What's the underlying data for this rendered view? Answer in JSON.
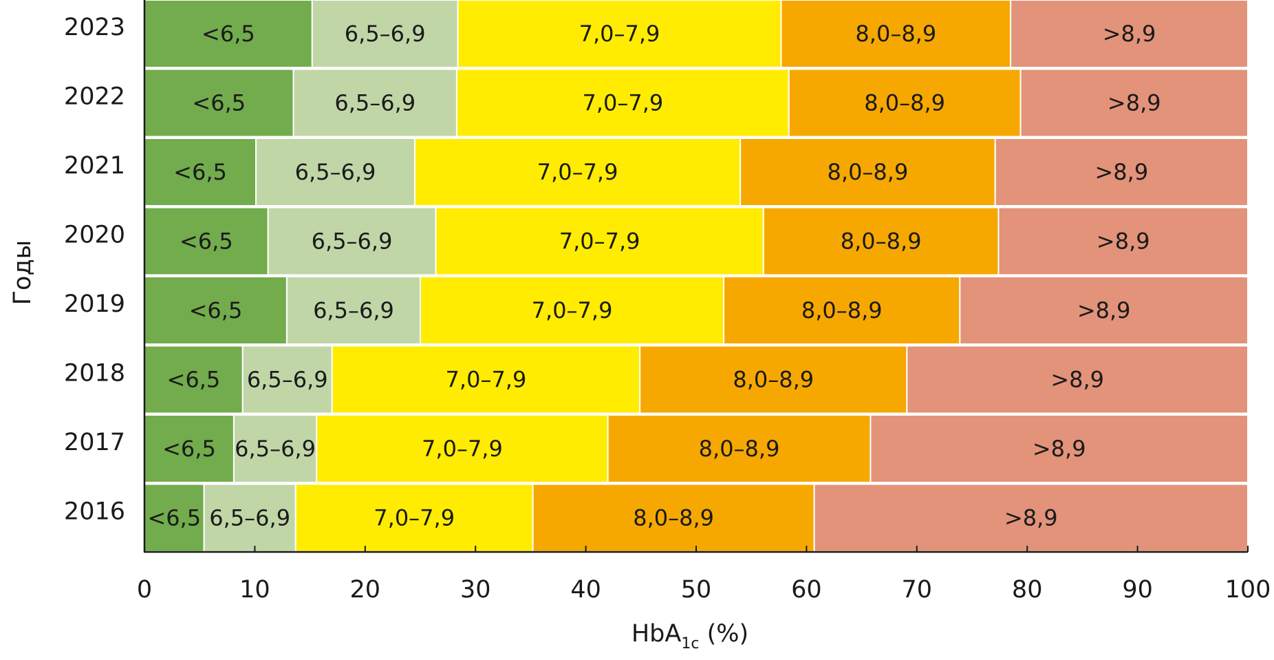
{
  "chart_data": {
    "type": "bar",
    "orientation": "horizontal",
    "stacked": true,
    "title": "",
    "xlabel": {
      "main": "HbA",
      "subscript": "1c",
      "suffix": " (%)"
    },
    "ylabel": "Годы",
    "xlim": [
      0,
      100
    ],
    "xticks": [
      "0",
      "10",
      "20",
      "30",
      "40",
      "50",
      "60",
      "70",
      "80",
      "90",
      "100"
    ],
    "categories": [
      "2023",
      "2022",
      "2021",
      "2020",
      "2019",
      "2018",
      "2017",
      "2016"
    ],
    "series": [
      {
        "name": "<6,5",
        "color": "#72ac4d",
        "values": [
          15.2,
          13.5,
          10.1,
          11.2,
          12.9,
          8.9,
          8.1,
          5.4
        ]
      },
      {
        "name": "6,5–6,9",
        "color": "#c0d6a7",
        "values": [
          13.2,
          14.8,
          14.4,
          15.2,
          12.1,
          8.1,
          7.5,
          8.3
        ]
      },
      {
        "name": "7,0–7,9",
        "color": "#ffec00",
        "values": [
          29.3,
          30.1,
          29.5,
          29.7,
          27.5,
          27.9,
          26.4,
          21.5
        ]
      },
      {
        "name": "8,0–8,9",
        "color": "#f6a800",
        "values": [
          20.8,
          21.0,
          23.1,
          21.3,
          21.4,
          24.2,
          23.8,
          25.5
        ]
      },
      {
        "name": ">8,9",
        "color": "#e2937a",
        "values": [
          21.5,
          20.6,
          22.9,
          22.6,
          26.1,
          30.9,
          34.2,
          39.3
        ]
      }
    ]
  }
}
